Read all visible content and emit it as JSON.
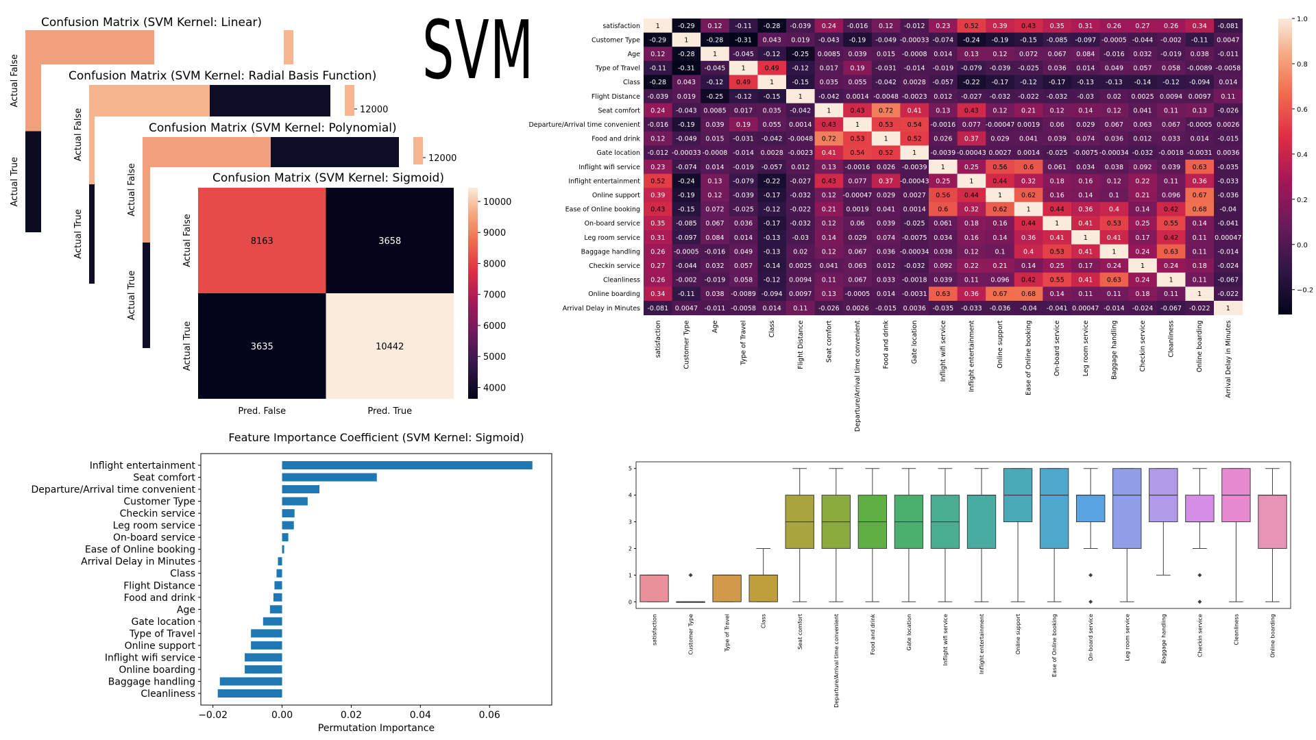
{
  "page_title": "SVM",
  "chart_data": [
    {
      "type": "heatmap",
      "kind": "confusion-matrix",
      "title": "Confusion Matrix (SVM Kernel: Linear)",
      "xticklabels": [],
      "yticklabels": [
        "Actual False",
        "Actual True"
      ],
      "values": [],
      "partially_hidden": true
    },
    {
      "type": "heatmap",
      "kind": "confusion-matrix",
      "title": "Confusion Matrix (SVM Kernel: Radial Basis Function)",
      "xticklabels": [],
      "yticklabels": [
        "Actual False",
        "Actual True"
      ],
      "colorbar_ticks": [
        12000
      ],
      "values": [],
      "partially_hidden": true
    },
    {
      "type": "heatmap",
      "kind": "confusion-matrix",
      "title": "Confusion Matrix (SVM Kernel: Polynomial)",
      "xticklabels": [],
      "yticklabels": [
        "Actual False",
        "Actual True"
      ],
      "colorbar_ticks": [
        12000
      ],
      "values": [],
      "partially_hidden": true
    },
    {
      "type": "heatmap",
      "kind": "confusion-matrix",
      "title": "Confusion Matrix (SVM Kernel: Sigmoid)",
      "xticklabels": [
        "Pred. False",
        "Pred. True"
      ],
      "yticklabels": [
        "Actual False",
        "Actual True"
      ],
      "values": [
        [
          8163,
          3658
        ],
        [
          3635,
          10442
        ]
      ],
      "colorbar_ticks": [
        4000,
        5000,
        6000,
        7000,
        8000,
        9000,
        10000
      ],
      "vmin": 3635,
      "vmax": 10442
    },
    {
      "type": "heatmap",
      "kind": "correlation",
      "labels": [
        "satisfaction",
        "Customer Type",
        "Age",
        "Type of Travel",
        "Class",
        "Flight Distance",
        "Seat comfort",
        "Departure/Arrival time convenient",
        "Food and drink",
        "Gate location",
        "Inflight wifi service",
        "Inflight entertainment",
        "Online support",
        "Ease of Online booking",
        "On-board service",
        "Leg room service",
        "Baggage handling",
        "Checkin service",
        "Cleanliness",
        "Online boarding",
        "Arrival Delay in Minutes"
      ],
      "values": [
        [
          "1",
          "-0.29",
          "0.12",
          "-0.11",
          "-0.28",
          "-0.039",
          "0.24",
          "-0.016",
          "0.12",
          "-0.012",
          "0.23",
          "0.52",
          "0.39",
          "0.43",
          "0.35",
          "0.31",
          "0.26",
          "0.27",
          "0.26",
          "0.34",
          "-0.081"
        ],
        [
          "-0.29",
          "1",
          "-0.28",
          "-0.31",
          "0.043",
          "0.019",
          "-0.043",
          "-0.19",
          "-0.049",
          "-0.00033",
          "-0.074",
          "-0.24",
          "-0.19",
          "-0.15",
          "-0.085",
          "-0.097",
          "-0.0005",
          "-0.044",
          "-0.002",
          "-0.11",
          "0.0047"
        ],
        [
          "0.12",
          "-0.28",
          "1",
          "-0.045",
          "-0.12",
          "-0.25",
          "0.0085",
          "0.039",
          "0.015",
          "-0.0008",
          "0.014",
          "0.13",
          "0.12",
          "0.072",
          "0.067",
          "0.084",
          "-0.016",
          "0.032",
          "-0.019",
          "0.038",
          "-0.011"
        ],
        [
          "-0.11",
          "-0.31",
          "-0.045",
          "1",
          "0.49",
          "-0.12",
          "0.017",
          "0.19",
          "-0.031",
          "-0.014",
          "-0.019",
          "-0.079",
          "-0.039",
          "-0.025",
          "0.036",
          "0.014",
          "0.049",
          "0.057",
          "0.058",
          "-0.0089",
          "-0.0058"
        ],
        [
          "-0.28",
          "0.043",
          "-0.12",
          "0.49",
          "1",
          "-0.15",
          "0.035",
          "0.055",
          "-0.042",
          "0.0028",
          "-0.057",
          "-0.22",
          "-0.17",
          "-0.12",
          "-0.17",
          "-0.13",
          "-0.13",
          "-0.14",
          "-0.12",
          "-0.094",
          "0.014"
        ],
        [
          "-0.039",
          "0.019",
          "-0.25",
          "-0.12",
          "-0.15",
          "1",
          "-0.042",
          "0.0014",
          "-0.0048",
          "-0.0023",
          "0.012",
          "-0.027",
          "-0.032",
          "-0.022",
          "-0.032",
          "-0.03",
          "0.02",
          "0.0025",
          "0.0094",
          "0.0097",
          "0.11"
        ],
        [
          "0.24",
          "-0.043",
          "0.0085",
          "0.017",
          "0.035",
          "-0.042",
          "1",
          "0.43",
          "0.72",
          "0.41",
          "0.13",
          "0.43",
          "0.12",
          "0.21",
          "0.12",
          "0.14",
          "0.12",
          "0.041",
          "0.11",
          "0.13",
          "-0.026"
        ],
        [
          "-0.016",
          "-0.19",
          "0.039",
          "0.19",
          "0.055",
          "0.0014",
          "0.43",
          "1",
          "0.53",
          "0.54",
          "-0.0016",
          "0.077",
          "-0.00047",
          "0.0019",
          "0.06",
          "0.029",
          "0.067",
          "0.063",
          "0.067",
          "-0.0005",
          "0.0026"
        ],
        [
          "0.12",
          "-0.049",
          "0.015",
          "-0.031",
          "-0.042",
          "-0.0048",
          "0.72",
          "0.53",
          "1",
          "0.52",
          "0.026",
          "0.37",
          "0.029",
          "0.041",
          "0.039",
          "0.074",
          "0.036",
          "0.012",
          "0.033",
          "0.014",
          "-0.015"
        ],
        [
          "-0.012",
          "-0.00033",
          "-0.0008",
          "-0.014",
          "0.0028",
          "-0.0023",
          "0.41",
          "0.54",
          "0.52",
          "1",
          "-0.0039",
          "-0.00043",
          "0.0027",
          "0.0014",
          "-0.025",
          "-0.0075",
          "-0.00034",
          "-0.032",
          "-0.0018",
          "-0.0031",
          "0.0036"
        ],
        [
          "0.23",
          "-0.074",
          "0.014",
          "-0.019",
          "-0.057",
          "0.012",
          "0.13",
          "-0.0016",
          "0.026",
          "-0.0039",
          "1",
          "0.25",
          "0.56",
          "0.6",
          "0.061",
          "0.034",
          "0.038",
          "0.092",
          "0.039",
          "0.63",
          "-0.035"
        ],
        [
          "0.52",
          "-0.24",
          "0.13",
          "-0.079",
          "-0.22",
          "-0.027",
          "0.43",
          "0.077",
          "0.37",
          "-0.00043",
          "0.25",
          "1",
          "0.44",
          "0.32",
          "0.18",
          "0.16",
          "0.12",
          "0.22",
          "0.11",
          "0.36",
          "-0.033"
        ],
        [
          "0.39",
          "-0.19",
          "0.12",
          "-0.039",
          "-0.17",
          "-0.032",
          "0.12",
          "-0.00047",
          "0.029",
          "0.0027",
          "0.56",
          "0.44",
          "1",
          "0.62",
          "0.16",
          "0.14",
          "0.1",
          "0.21",
          "0.096",
          "0.67",
          "-0.036"
        ],
        [
          "0.43",
          "-0.15",
          "0.072",
          "-0.025",
          "-0.12",
          "-0.022",
          "0.21",
          "0.0019",
          "0.041",
          "0.0014",
          "0.6",
          "0.32",
          "0.62",
          "1",
          "0.44",
          "0.36",
          "0.4",
          "0.14",
          "0.42",
          "0.68",
          "-0.04"
        ],
        [
          "0.35",
          "-0.085",
          "0.067",
          "0.036",
          "-0.17",
          "-0.032",
          "0.12",
          "0.06",
          "0.039",
          "-0.025",
          "0.061",
          "0.18",
          "0.16",
          "0.44",
          "1",
          "0.41",
          "0.53",
          "0.25",
          "0.55",
          "0.14",
          "-0.041"
        ],
        [
          "0.31",
          "-0.097",
          "0.084",
          "0.014",
          "-0.13",
          "-0.03",
          "0.14",
          "0.029",
          "0.074",
          "-0.0075",
          "0.034",
          "0.16",
          "0.14",
          "0.36",
          "0.41",
          "1",
          "0.41",
          "0.17",
          "0.42",
          "0.11",
          "0.00047"
        ],
        [
          "0.26",
          "-0.0005",
          "-0.016",
          "0.049",
          "-0.13",
          "0.02",
          "0.12",
          "0.067",
          "0.036",
          "-0.00034",
          "0.038",
          "0.12",
          "0.1",
          "0.4",
          "0.53",
          "0.41",
          "1",
          "0.24",
          "0.63",
          "0.11",
          "-0.014"
        ],
        [
          "0.27",
          "-0.044",
          "0.032",
          "0.057",
          "-0.14",
          "0.0025",
          "0.041",
          "0.063",
          "0.012",
          "-0.032",
          "0.092",
          "0.22",
          "0.21",
          "0.14",
          "0.25",
          "0.17",
          "0.24",
          "1",
          "0.24",
          "0.18",
          "-0.024"
        ],
        [
          "0.26",
          "-0.002",
          "-0.019",
          "0.058",
          "-0.12",
          "0.0094",
          "0.11",
          "0.067",
          "0.033",
          "-0.0018",
          "0.039",
          "0.11",
          "0.096",
          "0.42",
          "0.55",
          "0.41",
          "0.63",
          "0.24",
          "1",
          "0.11",
          "-0.067"
        ],
        [
          "0.34",
          "-0.11",
          "0.038",
          "-0.0089",
          "-0.094",
          "0.0097",
          "0.13",
          "-0.0005",
          "0.014",
          "-0.0031",
          "0.63",
          "0.36",
          "0.67",
          "0.68",
          "0.14",
          "0.11",
          "0.11",
          "0.18",
          "0.11",
          "1",
          "-0.022"
        ],
        [
          "-0.081",
          "0.0047",
          "-0.011",
          "-0.0058",
          "0.014",
          "0.11",
          "-0.026",
          "0.0026",
          "-0.015",
          "0.0036",
          "-0.035",
          "-0.033",
          "-0.036",
          "-0.04",
          "-0.041",
          "0.00047",
          "-0.014",
          "-0.024",
          "-0.067",
          "-0.022",
          "1"
        ]
      ],
      "colorbar_ticks": [
        "1.0",
        "0.8",
        "0.6",
        "0.4",
        "0.2",
        "0.0",
        "−0.2"
      ],
      "vmin": -0.31,
      "vmax": 1.0
    },
    {
      "type": "bar",
      "orientation": "horizontal",
      "title": "Feature Importance Coefficient (SVM Kernel: Sigmoid)",
      "xlabel": "Permutation Importance",
      "categories": [
        "Inflight entertainment",
        "Seat comfort",
        "Departure/Arrival time convenient",
        "Customer Type",
        "Checkin service",
        "Leg room service",
        "On-board service",
        "Ease of Online booking",
        "Arrival Delay in Minutes",
        "Class",
        "Flight Distance",
        "Food and drink",
        "Age",
        "Gate location",
        "Type of Travel",
        "Online support",
        "Inflight wifi service",
        "Online boarding",
        "Baggage handling",
        "Cleanliness"
      ],
      "values": [
        0.0724,
        0.0274,
        0.0108,
        0.0074,
        0.0036,
        0.0034,
        0.0018,
        0.0006,
        -0.0012,
        -0.0016,
        -0.0022,
        -0.0025,
        -0.0035,
        -0.0055,
        -0.009,
        -0.009,
        -0.0108,
        -0.0108,
        -0.018,
        -0.0186
      ],
      "xlim": [
        -0.0235,
        0.078
      ],
      "xticks": [
        "−0.02",
        "0.00",
        "0.02",
        "0.04",
        "0.06"
      ],
      "xtick_values": [
        -0.02,
        0,
        0.02,
        0.04,
        0.06
      ],
      "color": "#1f77b4"
    },
    {
      "type": "box",
      "categories": [
        "satisfaction",
        "Customer Type",
        "Type of Travel",
        "Class",
        "Seat comfort",
        "Departure/Arrival time convenient",
        "Food and drink",
        "Gate location",
        "Inflight wifi service",
        "Inflight entertainment",
        "Online support",
        "Ease of Online booking",
        "On-board service",
        "Leg room service",
        "Baggage handling",
        "Checkin service",
        "Cleanliness",
        "Online boarding"
      ],
      "colors": [
        "#e8919b",
        "#e2956e",
        "#d09a4a",
        "#bf9e3c",
        "#a7a53c",
        "#8aab3c",
        "#5fb043",
        "#4bb06d",
        "#49ad90",
        "#48aca3",
        "#4aaab7",
        "#4ea8cc",
        "#5aa4e2",
        "#8f9fe8",
        "#b09be9",
        "#d58ee6",
        "#e68bd0",
        "#e894b6"
      ],
      "boxes": [
        {
          "low": 0,
          "q1": 0,
          "median": 1,
          "q3": 1,
          "high": 1,
          "fliers": []
        },
        {
          "low": 0,
          "q1": 0,
          "median": 0,
          "q3": 0,
          "high": 0,
          "fliers": [
            1
          ]
        },
        {
          "low": 0,
          "q1": 0,
          "median": 1,
          "q3": 1,
          "high": 1,
          "fliers": []
        },
        {
          "low": 0,
          "q1": 0,
          "median": 1,
          "q3": 1,
          "high": 2,
          "fliers": []
        },
        {
          "low": 0,
          "q1": 2,
          "median": 3,
          "q3": 4,
          "high": 5,
          "fliers": []
        },
        {
          "low": 0,
          "q1": 2,
          "median": 3,
          "q3": 4,
          "high": 5,
          "fliers": []
        },
        {
          "low": 0,
          "q1": 2,
          "median": 3,
          "q3": 4,
          "high": 5,
          "fliers": []
        },
        {
          "low": 0,
          "q1": 2,
          "median": 3,
          "q3": 4,
          "high": 5,
          "fliers": []
        },
        {
          "low": 0,
          "q1": 2,
          "median": 3,
          "q3": 4,
          "high": 5,
          "fliers": []
        },
        {
          "low": 0,
          "q1": 2,
          "median": 4,
          "q3": 4,
          "high": 5,
          "fliers": []
        },
        {
          "low": 0,
          "q1": 3,
          "median": 4,
          "q3": 5,
          "high": 5,
          "fliers": []
        },
        {
          "low": 0,
          "q1": 2,
          "median": 4,
          "q3": 5,
          "high": 5,
          "fliers": []
        },
        {
          "low": 2,
          "q1": 3,
          "median": 4,
          "q3": 4,
          "high": 5,
          "fliers": [
            1,
            0
          ]
        },
        {
          "low": 0,
          "q1": 2,
          "median": 4,
          "q3": 5,
          "high": 5,
          "fliers": []
        },
        {
          "low": 1,
          "q1": 3,
          "median": 4,
          "q3": 5,
          "high": 5,
          "fliers": []
        },
        {
          "low": 2,
          "q1": 3,
          "median": 3,
          "q3": 4,
          "high": 5,
          "fliers": [
            1,
            0
          ]
        },
        {
          "low": 0,
          "q1": 3,
          "median": 4,
          "q3": 5,
          "high": 5,
          "fliers": []
        },
        {
          "low": 0,
          "q1": 2,
          "median": 4,
          "q3": 4,
          "high": 5,
          "fliers": []
        }
      ],
      "ylim": [
        -0.25,
        5.25
      ],
      "yticks": [
        0,
        1,
        2,
        3,
        4,
        5
      ]
    }
  ]
}
